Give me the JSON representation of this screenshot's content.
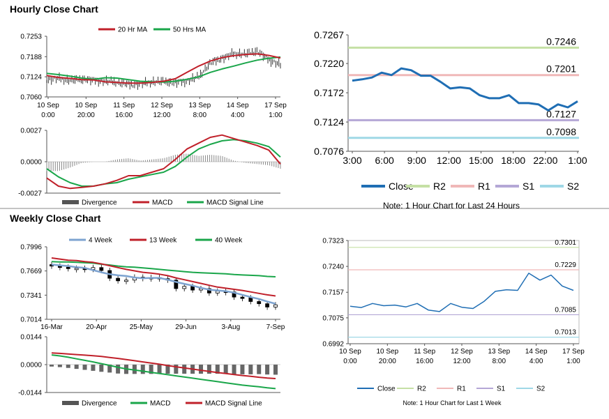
{
  "sections": {
    "hourly_title": "Hourly Close Chart",
    "weekly_title": "Weekly Close Chart"
  },
  "colors": {
    "ma_red": "#c0202a",
    "ma_green": "#1aa64a",
    "ma_blue": "#7da3d0",
    "close_blue": "#1f6eb4",
    "r2": "#c5e0a5",
    "r1": "#f0b8b8",
    "s1": "#b4a7d6",
    "s2": "#9fd8e6",
    "divergence": "#888888",
    "axis": "#555555"
  },
  "chart_data": [
    {
      "id": "hourly-price",
      "type": "line",
      "title": "Hourly Close Chart",
      "legend": [
        "20 Hr MA",
        "50 Hrs MA"
      ],
      "yticks": [
        "0.7253",
        "0.7188",
        "0.7124",
        "0.7060"
      ],
      "ylim": [
        0.706,
        0.7253
      ],
      "xticks": [
        [
          "10 Sep",
          "0:00"
        ],
        [
          "10 Sep",
          "20:00"
        ],
        [
          "11 Sep",
          "16:00"
        ],
        [
          "12 Sep",
          "12:00"
        ],
        [
          "13 Sep",
          "8:00"
        ],
        [
          "14 Sep",
          "4:00"
        ],
        [
          "17 Sep",
          "1:00"
        ]
      ],
      "x": [
        0,
        5,
        10,
        15,
        20,
        25,
        30,
        35,
        40,
        45,
        50,
        55,
        60,
        65,
        70,
        75,
        80,
        85,
        90,
        95,
        100
      ],
      "close": [
        0.7115,
        0.7119,
        0.7112,
        0.7116,
        0.7113,
        0.711,
        0.7107,
        0.7099,
        0.7101,
        0.7108,
        0.7109,
        0.7105,
        0.7111,
        0.7124,
        0.7168,
        0.7183,
        0.7198,
        0.7196,
        0.7206,
        0.7178,
        0.7163
      ],
      "series": [
        {
          "name": "20 Hr MA",
          "values": [
            0.7128,
            0.7122,
            0.7119,
            0.7115,
            0.7114,
            0.7108,
            0.7106,
            0.7104,
            0.7104,
            0.7106,
            0.711,
            0.7118,
            0.7138,
            0.7158,
            0.7174,
            0.7185,
            0.7191,
            0.7195,
            0.7197,
            0.7192,
            0.7184
          ]
        },
        {
          "name": "50 Hrs MA",
          "values": [
            0.7135,
            0.7131,
            0.7126,
            0.712,
            0.7116,
            0.7121,
            0.712,
            0.7115,
            0.711,
            0.7108,
            0.7107,
            0.711,
            0.7116,
            0.7124,
            0.7138,
            0.7149,
            0.7158,
            0.7168,
            0.7177,
            0.7183,
            0.7187
          ]
        }
      ]
    },
    {
      "id": "hourly-macd",
      "type": "line",
      "legend": [
        "Divergence",
        "MACD",
        "MACD Signal Line"
      ],
      "yticks": [
        "0.0027",
        "0.0000",
        "-0.0027"
      ],
      "ylim": [
        -0.0027,
        0.0027
      ],
      "x": [
        0,
        5,
        10,
        15,
        20,
        25,
        30,
        35,
        40,
        45,
        50,
        55,
        60,
        65,
        70,
        75,
        80,
        85,
        90,
        95,
        100
      ],
      "series": [
        {
          "name": "MACD",
          "values": [
            -0.0014,
            -0.0021,
            -0.0023,
            -0.0022,
            -0.0021,
            -0.0019,
            -0.0016,
            -0.0012,
            -0.0012,
            -0.0009,
            -0.0006,
            0.0002,
            0.0011,
            0.0016,
            0.0021,
            0.0023,
            0.002,
            0.0017,
            0.0014,
            0.001,
            -0.0002
          ]
        },
        {
          "name": "MACD Signal Line",
          "values": [
            -0.0006,
            -0.0013,
            -0.0018,
            -0.0021,
            -0.0021,
            -0.0019,
            -0.0018,
            -0.0015,
            -0.0013,
            -0.0011,
            -0.0009,
            -0.0004,
            0.0004,
            0.0011,
            0.0015,
            0.0018,
            0.0019,
            0.0018,
            0.0016,
            0.0013,
            0.0004
          ]
        }
      ]
    },
    {
      "id": "hourly-levels",
      "type": "line",
      "yticks": [
        "0.7267",
        "0.7220",
        "0.7172",
        "0.7124",
        "0.7076"
      ],
      "ylim": [
        0.7076,
        0.7267
      ],
      "xticks": [
        "3:00",
        "6:00",
        "9:00",
        "12:00",
        "15:00",
        "18:00",
        "22:00",
        "1:00"
      ],
      "x": [
        0,
        1,
        2,
        3,
        4,
        5,
        6,
        7,
        8,
        9,
        10,
        11,
        12,
        13,
        14,
        15,
        16,
        17,
        18,
        19,
        20,
        21,
        22,
        23
      ],
      "series": [
        {
          "name": "Close",
          "values": [
            0.7192,
            0.7194,
            0.7197,
            0.7205,
            0.7201,
            0.7212,
            0.7209,
            0.72,
            0.72,
            0.719,
            0.7179,
            0.7181,
            0.7179,
            0.7168,
            0.7163,
            0.7163,
            0.7168,
            0.7155,
            0.7155,
            0.7153,
            0.7143,
            0.7153,
            0.7148,
            0.7158
          ]
        }
      ],
      "levels": [
        {
          "name": "R2",
          "value": 0.7246,
          "label": "0.7246"
        },
        {
          "name": "R1",
          "value": 0.7201,
          "label": "0.7201"
        },
        {
          "name": "S1",
          "value": 0.7127,
          "label": "0.7127"
        },
        {
          "name": "S2",
          "value": 0.7098,
          "label": "0.7098"
        }
      ],
      "legend": [
        "Close",
        "R2",
        "R1",
        "S1",
        "S2"
      ],
      "note": "Note: 1 Hour Chart for Last 24 Hours"
    },
    {
      "id": "weekly-price",
      "type": "line",
      "title": "Weekly Close Chart",
      "legend": [
        "4 Week",
        "13 Week",
        "40 Week"
      ],
      "yticks": [
        "0.7996",
        "0.7669",
        "0.7341",
        "0.7014"
      ],
      "ylim": [
        0.7014,
        0.7996
      ],
      "xticks": [
        "16-Mar",
        "20-Apr",
        "25-May",
        "29-Jun",
        "3-Aug",
        "7-Sep"
      ],
      "x": [
        0,
        1,
        2,
        3,
        4,
        5,
        6,
        7,
        8,
        9,
        10,
        11,
        12,
        13,
        14,
        15,
        16,
        17,
        18,
        19,
        20,
        21,
        22,
        23,
        24,
        25,
        26,
        27
      ],
      "close": [
        0.7735,
        0.772,
        0.77,
        0.7705,
        0.769,
        0.7715,
        0.7675,
        0.757,
        0.7535,
        0.7545,
        0.7585,
        0.7575,
        0.758,
        0.7565,
        0.7545,
        0.743,
        0.746,
        0.741,
        0.743,
        0.737,
        0.7395,
        0.7385,
        0.7315,
        0.7305,
        0.7255,
        0.7225,
        0.718,
        0.721
      ],
      "series": [
        {
          "name": "4 Week",
          "values": [
            0.7755,
            0.7745,
            0.7735,
            0.772,
            0.771,
            0.768,
            0.765,
            0.7625,
            0.761,
            0.76,
            0.758,
            0.757,
            0.7575,
            0.7575,
            0.755,
            0.752,
            0.7495,
            0.747,
            0.744,
            0.7415,
            0.7405,
            0.7395,
            0.7375,
            0.7345,
            0.7315,
            0.729,
            0.7255,
            0.7225
          ]
        },
        {
          "name": "13 Week",
          "values": [
            0.7845,
            0.783,
            0.7815,
            0.781,
            0.7795,
            0.7785,
            0.7765,
            0.774,
            0.7715,
            0.769,
            0.767,
            0.765,
            0.764,
            0.7625,
            0.7605,
            0.7575,
            0.755,
            0.7525,
            0.75,
            0.7475,
            0.745,
            0.7435,
            0.742,
            0.7405,
            0.7385,
            0.7365,
            0.7345,
            0.733
          ]
        },
        {
          "name": "40 Week",
          "values": [
            0.7795,
            0.779,
            0.779,
            0.7785,
            0.778,
            0.7775,
            0.776,
            0.775,
            0.7735,
            0.7725,
            0.772,
            0.771,
            0.77,
            0.769,
            0.768,
            0.767,
            0.766,
            0.765,
            0.7645,
            0.764,
            0.7635,
            0.763,
            0.762,
            0.7615,
            0.761,
            0.7605,
            0.7595,
            0.759
          ]
        }
      ]
    },
    {
      "id": "weekly-macd",
      "type": "line",
      "legend": [
        "Divergence",
        "MACD",
        "MACD Signal Line"
      ],
      "yticks": [
        "0.0144",
        "0.0000",
        "-0.0144"
      ],
      "ylim": [
        -0.0144,
        0.0144
      ],
      "x": [
        0,
        1,
        2,
        3,
        4,
        5,
        6,
        7,
        8,
        9,
        10,
        11,
        12,
        13,
        14,
        15,
        16,
        17,
        18,
        19,
        20,
        21,
        22,
        23,
        24,
        25,
        26,
        27
      ],
      "series": [
        {
          "name": "MACD",
          "values": [
            0.005,
            0.0045,
            0.0038,
            0.003,
            0.0022,
            0.0014,
            0.0005,
            -0.0004,
            -0.0014,
            -0.0022,
            -0.0028,
            -0.0034,
            -0.004,
            -0.0046,
            -0.0052,
            -0.0058,
            -0.0064,
            -0.007,
            -0.0076,
            -0.0082,
            -0.0088,
            -0.0094,
            -0.01,
            -0.0106,
            -0.011,
            -0.0114,
            -0.012,
            -0.0124
          ]
        },
        {
          "name": "MACD Signal Line",
          "values": [
            0.006,
            0.0058,
            0.0055,
            0.0052,
            0.0049,
            0.0046,
            0.0042,
            0.0037,
            0.0032,
            0.0026,
            0.002,
            0.0014,
            0.0008,
            0.0002,
            -0.0005,
            -0.0011,
            -0.0017,
            -0.0023,
            -0.0029,
            -0.0035,
            -0.0041,
            -0.0046,
            -0.0051,
            -0.0056,
            -0.006,
            -0.0065,
            -0.0069,
            -0.0072
          ]
        }
      ]
    },
    {
      "id": "weekly-levels",
      "type": "line",
      "yticks": [
        "0.7323",
        "0.7240",
        "0.7157",
        "0.7075",
        "0.6992"
      ],
      "ylim": [
        0.6992,
        0.7323
      ],
      "xticks": [
        [
          "10 Sep",
          "0:00"
        ],
        [
          "10 Sep",
          "20:00"
        ],
        [
          "11 Sep",
          "16:00"
        ],
        [
          "12 Sep",
          "12:00"
        ],
        [
          "13 Sep",
          "8:00"
        ],
        [
          "14 Sep",
          "4:00"
        ],
        [
          "17 Sep",
          "1:00"
        ]
      ],
      "x": [
        0,
        5,
        10,
        15,
        20,
        25,
        30,
        35,
        40,
        45,
        50,
        55,
        60,
        65,
        70,
        75,
        80,
        85,
        90,
        95,
        100
      ],
      "series": [
        {
          "name": "Close",
          "values": [
            0.7112,
            0.7108,
            0.7121,
            0.7114,
            0.7116,
            0.711,
            0.7121,
            0.71,
            0.7095,
            0.7121,
            0.7109,
            0.7105,
            0.7128,
            0.716,
            0.7165,
            0.7163,
            0.7218,
            0.7196,
            0.7212,
            0.7177,
            0.7163
          ]
        }
      ],
      "levels": [
        {
          "name": "R2",
          "value": 0.7301,
          "label": "0.7301"
        },
        {
          "name": "R1",
          "value": 0.7229,
          "label": "0.7229"
        },
        {
          "name": "S1",
          "value": 0.7085,
          "label": "0.7085"
        },
        {
          "name": "S2",
          "value": 0.7013,
          "label": "0.7013"
        }
      ],
      "legend": [
        "Close",
        "R2",
        "R1",
        "S1",
        "S2"
      ],
      "note": "Note: 1 Hour Chart for Last 1 Week"
    }
  ]
}
